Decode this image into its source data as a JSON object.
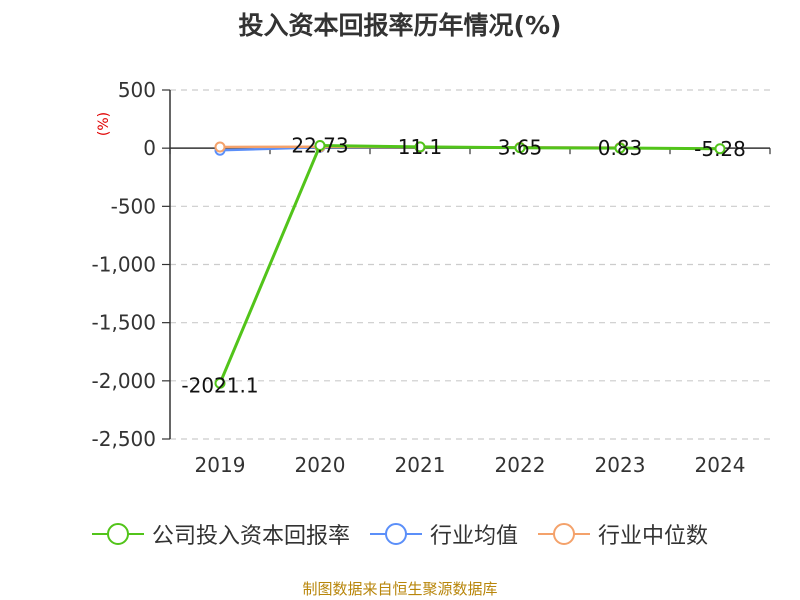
{
  "chart_data": {
    "type": "line",
    "title": "投入资本回报率历年情况(%)",
    "ylabel": "(%)",
    "xlabel": "",
    "categories": [
      "2019",
      "2020",
      "2021",
      "2022",
      "2023",
      "2024"
    ],
    "ylim": [
      -2500,
      500
    ],
    "yticks": [
      500,
      0,
      -500,
      -1000,
      -1500,
      -2000,
      -2500
    ],
    "ytick_labels": [
      "500",
      "0",
      "-500",
      "-1,000",
      "-1,500",
      "-2,000",
      "-2,500"
    ],
    "grid": true,
    "legend_position": "bottom",
    "series": [
      {
        "name": "公司投入资本回报率",
        "color": "#52c41a",
        "values": [
          -2021.1,
          22.73,
          11.1,
          3.65,
          0.83,
          -5.28
        ],
        "labels": [
          "-2021.1",
          "22.73",
          "11.1",
          "3.65",
          "0.83",
          "-5.28"
        ]
      },
      {
        "name": "行业均值",
        "color": "#5b8ff9",
        "values": [
          -18,
          8,
          8,
          6,
          4,
          null
        ]
      },
      {
        "name": "行业中位数",
        "color": "#f4a26b",
        "values": [
          10,
          12,
          9,
          7,
          5,
          null
        ]
      }
    ]
  },
  "source": "制图数据来自恒生聚源数据库"
}
